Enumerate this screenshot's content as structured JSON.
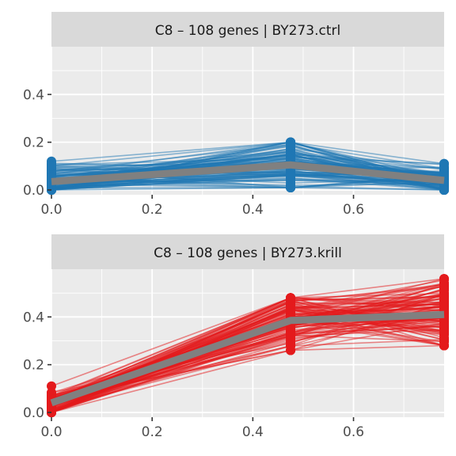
{
  "chart_data": [
    {
      "type": "line",
      "title": "C8 – 108 genes | BY273.ctrl",
      "xlabel": "",
      "ylabel": "",
      "xlim": [
        0,
        0.78
      ],
      "ylim": [
        -0.02,
        0.6
      ],
      "x_ticks": [
        "0.0",
        "0.2",
        "0.4",
        "0.6"
      ],
      "x_tick_values": [
        0.0,
        0.2,
        0.4,
        0.6
      ],
      "y_ticks": [
        "0.0",
        "0.2",
        "0.4"
      ],
      "y_tick_values": [
        0.0,
        0.2,
        0.4
      ],
      "x": [
        0.0,
        0.475,
        0.78
      ],
      "gene_count": 108,
      "gene_color": "#1f77b4",
      "mean_color": "#808080",
      "mean_series": {
        "values": [
          0.035,
          0.105,
          0.04
        ]
      },
      "gene_ranges": [
        {
          "x": 0.0,
          "min": 0.0,
          "max": 0.12
        },
        {
          "x": 0.475,
          "min": 0.01,
          "max": 0.2
        },
        {
          "x": 0.78,
          "min": 0.0,
          "max": 0.11
        }
      ],
      "grid": true
    },
    {
      "type": "line",
      "title": "C8 – 108 genes | BY273.krill",
      "xlabel": "",
      "ylabel": "",
      "xlim": [
        0,
        0.78
      ],
      "ylim": [
        -0.02,
        0.6
      ],
      "x_ticks": [
        "0.0",
        "0.2",
        "0.4",
        "0.6"
      ],
      "x_tick_values": [
        0.0,
        0.2,
        0.4,
        0.6
      ],
      "y_ticks": [
        "0.0",
        "0.2",
        "0.4"
      ],
      "y_tick_values": [
        0.0,
        0.2,
        0.4
      ],
      "x": [
        0.0,
        0.475,
        0.78
      ],
      "gene_count": 108,
      "gene_color": "#e41a1c",
      "mean_color": "#808080",
      "mean_series": {
        "values": [
          0.04,
          0.385,
          0.41
        ]
      },
      "gene_ranges": [
        {
          "x": 0.0,
          "min": 0.0,
          "max": 0.11
        },
        {
          "x": 0.475,
          "min": 0.26,
          "max": 0.48
        },
        {
          "x": 0.78,
          "min": 0.28,
          "max": 0.56
        }
      ],
      "grid": true
    }
  ]
}
